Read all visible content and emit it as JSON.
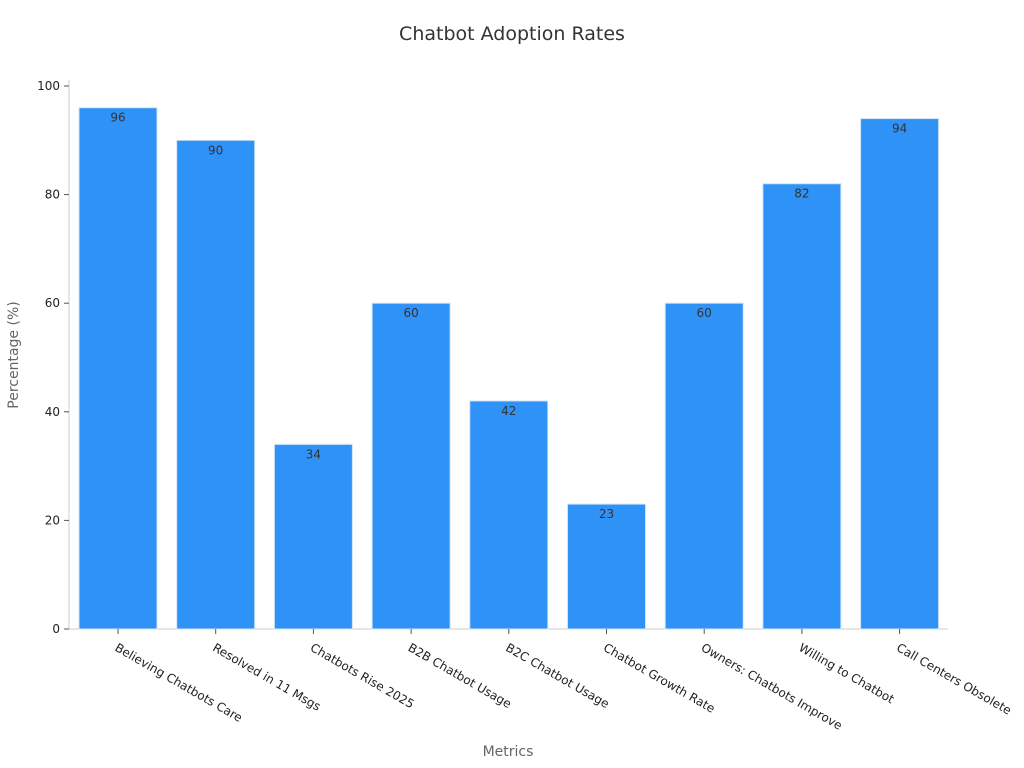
{
  "chart_data": {
    "type": "bar",
    "title": "Chatbot Adoption Rates",
    "xlabel": "Metrics",
    "ylabel": "Percentage (%)",
    "categories": [
      "Believing Chatbots Care",
      "Resolved in 11 Msgs",
      "Chatbots Rise 2025",
      "B2B Chatbot Usage",
      "B2C Chatbot Usage",
      "Chatbot Growth Rate",
      "Owners: Chatbots Improve",
      "Willing to Chatbot",
      "Call Centers Obsolete"
    ],
    "values": [
      96,
      90,
      34,
      60,
      42,
      23,
      60,
      82,
      94
    ],
    "ylim": [
      0,
      100
    ],
    "yticks": [
      0,
      20,
      40,
      60,
      80,
      100
    ],
    "grid": false,
    "legend": "none",
    "bar_color": "#2f92f7",
    "bar_edge_color": "#d0e4f7"
  }
}
